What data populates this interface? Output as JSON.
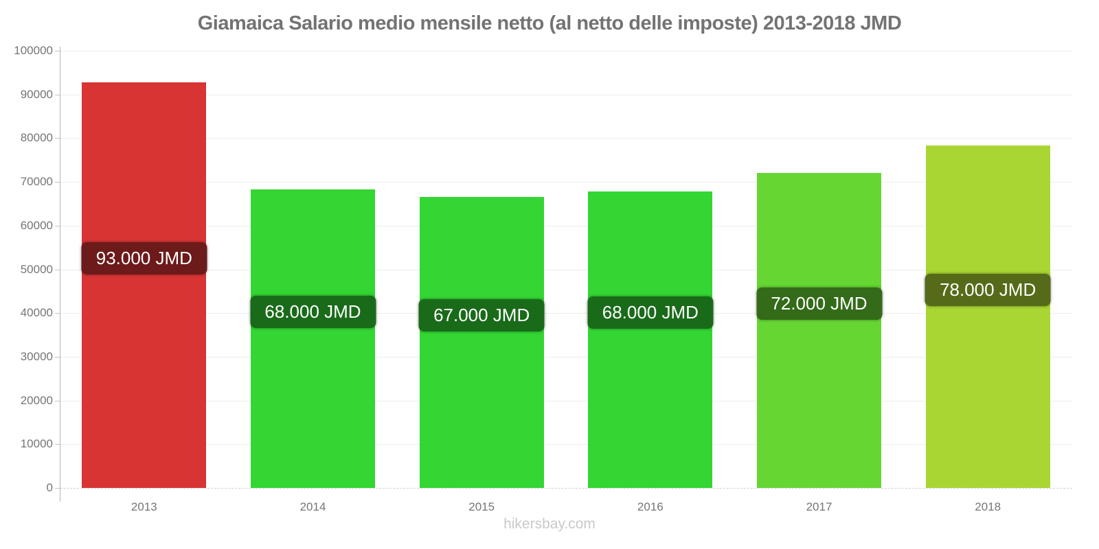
{
  "title": "Giamaica Salario medio mensile netto (al netto delle imposte) 2013-2018 JMD",
  "footer": {
    "watermark": "hikersbay.com"
  },
  "chart_data": {
    "type": "bar",
    "title": "Giamaica Salario medio mensile netto (al netto delle imposte) 2013-2018 JMD",
    "xlabel": "",
    "ylabel": "",
    "categories": [
      "2013",
      "2014",
      "2015",
      "2016",
      "2017",
      "2018"
    ],
    "values": [
      93000,
      68000,
      67000,
      68000,
      72000,
      78000
    ],
    "values_exact": [
      92800,
      68300,
      66600,
      67800,
      72000,
      78300
    ],
    "value_labels": [
      "93.000 JMD",
      "68.000 JMD",
      "67.000 JMD",
      "68.000 JMD",
      "72.000 JMD",
      "78.000 JMD"
    ],
    "unit": "JMD",
    "bar_colors": [
      "#d83434",
      "#33d633",
      "#33d633",
      "#33d633",
      "#66d633",
      "#aad633"
    ],
    "value_label_bg_colors": [
      "#6c1a1a",
      "#196b19",
      "#196b19",
      "#196b19",
      "#336b19",
      "#556b19"
    ],
    "value_label_text_color": "#ffffff",
    "ylim": [
      0,
      100000
    ],
    "ytick_step": 10000,
    "yticks": [
      "0",
      "10000",
      "20000",
      "30000",
      "40000",
      "50000",
      "60000",
      "70000",
      "80000",
      "90000",
      "100000"
    ],
    "grid": true,
    "legend": false,
    "text_color": "#757575",
    "title_color": "#737373",
    "watermark_color": "#c9c9c9"
  }
}
